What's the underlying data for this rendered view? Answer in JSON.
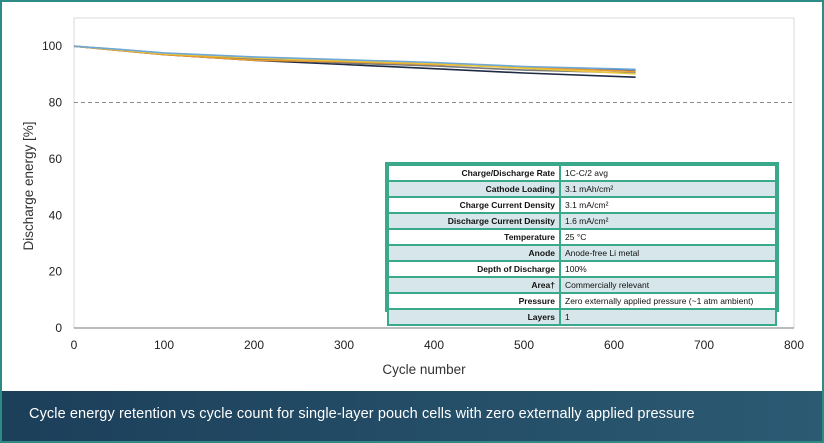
{
  "caption": "Cycle energy retention vs cycle count for single-layer pouch cells with zero externally applied pressure",
  "chart_data": {
    "type": "line",
    "xlabel": "Cycle number",
    "ylabel": "Discharge energy [%]",
    "xlim": [
      0,
      800
    ],
    "ylim": [
      0,
      110
    ],
    "xticks": [
      0,
      100,
      200,
      300,
      400,
      500,
      600,
      700,
      800
    ],
    "yticks": [
      0,
      20,
      40,
      60,
      80,
      100
    ],
    "grid": false,
    "reference_line": {
      "y": 80,
      "style": "dashed"
    },
    "series": [
      {
        "color": "#1f2a44",
        "x": [
          0,
          50,
          100,
          200,
          300,
          400,
          500,
          624
        ],
        "y": [
          100,
          98.5,
          97,
          95,
          93.5,
          92,
          90.5,
          89
        ]
      },
      {
        "color": "#3b5a9a",
        "x": [
          0,
          50,
          100,
          200,
          300,
          400,
          500,
          624
        ],
        "y": [
          100,
          98.8,
          97.5,
          96,
          95,
          94,
          92.5,
          91.5
        ]
      },
      {
        "color": "#7a7a7a",
        "x": [
          0,
          50,
          100,
          200,
          300,
          400,
          500,
          624
        ],
        "y": [
          100,
          98.6,
          97.2,
          95.5,
          94,
          93,
          91.5,
          90.5
        ]
      },
      {
        "color": "#e89a2c",
        "x": [
          0,
          50,
          100,
          200,
          300,
          400,
          500,
          624
        ],
        "y": [
          100,
          98.5,
          97,
          95,
          94.5,
          93.5,
          92.5,
          91
        ]
      },
      {
        "color": "#e8c53a",
        "x": [
          0,
          50,
          100,
          200,
          300,
          400,
          500,
          624
        ],
        "y": [
          100,
          98.7,
          97.3,
          95.8,
          94.8,
          93.8,
          92.2,
          90.2
        ]
      },
      {
        "color": "#6ea8d8",
        "x": [
          0,
          50,
          100,
          200,
          300,
          400,
          500,
          624
        ],
        "y": [
          100,
          98.9,
          97.6,
          96.2,
          95.2,
          94.2,
          92.8,
          91.8
        ]
      }
    ]
  },
  "spec_table": [
    {
      "label": "Charge/Discharge Rate",
      "value": "1C-C/2 avg"
    },
    {
      "label": "Cathode Loading",
      "value": "3.1 mAh/cm²"
    },
    {
      "label": "Charge Current Density",
      "value": "3.1 mA/cm²"
    },
    {
      "label": "Discharge Current Density",
      "value": "1.6 mA/cm²"
    },
    {
      "label": "Temperature",
      "value": "25 °C"
    },
    {
      "label": "Anode",
      "value": "Anode-free Li metal"
    },
    {
      "label": "Depth of Discharge",
      "value": "100%"
    },
    {
      "label": "Area†",
      "value": "Commercially relevant"
    },
    {
      "label": "Pressure",
      "value": "Zero externally applied pressure (~1 atm ambient)"
    },
    {
      "label": "Layers",
      "value": "1"
    }
  ]
}
